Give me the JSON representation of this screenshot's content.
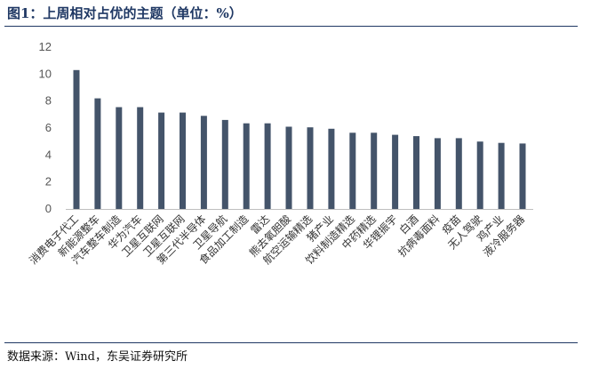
{
  "header": {
    "title": "图1：上周相对占优的主题（单位：%）"
  },
  "footer": {
    "source": "数据来源：Wind，东吴证券研究所"
  },
  "colors": {
    "bar": "#44546a",
    "accent": "#1f3864",
    "axis": "#bfbfbf"
  },
  "chart_data": {
    "type": "bar",
    "title": "上周相对占优的主题（单位：%）",
    "xlabel": "",
    "ylabel": "",
    "ylim": [
      0,
      12
    ],
    "yticks": [
      0,
      2,
      4,
      6,
      8,
      10,
      12
    ],
    "grid": false,
    "categories": [
      "消费电子代工",
      "新能源整车",
      "汽车整车制造",
      "华为汽车",
      "卫星互联网",
      "卫星互联网",
      "第三代半导体",
      "卫星导航",
      "食品加工制造",
      "雷达",
      "熊去氧胆酸",
      "航空运输精选",
      "猪产业",
      "饮料制造精选",
      "中药精选",
      "华锂振宇",
      "白酒",
      "抗病毒面料",
      "疫苗",
      "无人驾驶",
      "鸡产业",
      "液冷服务器"
    ],
    "values": [
      10.3,
      8.2,
      7.55,
      7.55,
      7.15,
      7.15,
      6.9,
      6.6,
      6.35,
      6.35,
      6.1,
      6.05,
      5.95,
      5.65,
      5.65,
      5.5,
      5.4,
      5.25,
      5.25,
      5.0,
      4.9,
      4.85
    ]
  }
}
